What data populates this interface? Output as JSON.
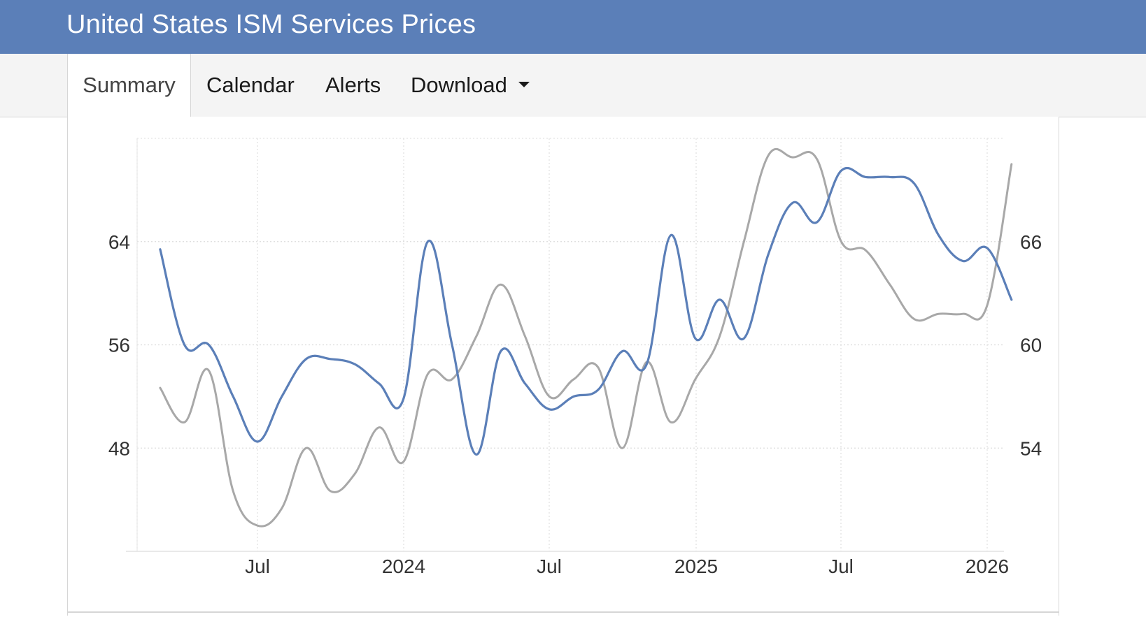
{
  "header": {
    "title": "United States ISM Services Prices"
  },
  "tabs": [
    {
      "label": "Summary",
      "active": true
    },
    {
      "label": "Calendar",
      "active": false
    },
    {
      "label": "Alerts",
      "active": false
    },
    {
      "label": "Download",
      "active": false,
      "dropdown": true
    }
  ],
  "chart_data": {
    "type": "line",
    "title": "",
    "xlabel": "",
    "x_tick_labels": [
      "Jul",
      "2024",
      "Jul",
      "2025",
      "Jul",
      "2026"
    ],
    "x": [
      "2023-03",
      "2023-04",
      "2023-05",
      "2023-06",
      "2023-07",
      "2023-08",
      "2023-09",
      "2023-10",
      "2023-11",
      "2023-12",
      "2024-01",
      "2024-02",
      "2024-03",
      "2024-04",
      "2024-05",
      "2024-06",
      "2024-07",
      "2024-08",
      "2024-09",
      "2024-10",
      "2024-11",
      "2024-12",
      "2025-01",
      "2025-02",
      "2025-03",
      "2025-04",
      "2025-05",
      "2025-06",
      "2025-07",
      "2025-08",
      "2025-09",
      "2025-10",
      "2025-11",
      "2025-12",
      "2026-01",
      "2026-02"
    ],
    "y_left": {
      "ticks": [
        48,
        56,
        64
      ],
      "range": [
        40,
        72
      ]
    },
    "y_right": {
      "ticks": [
        54,
        60,
        66
      ],
      "range": [
        48,
        72
      ]
    },
    "grid": true,
    "legend": "none",
    "series": [
      {
        "axis": "left",
        "color": "#5b7fb8",
        "values": [
          63.4,
          56.0,
          56.0,
          52.0,
          48.5,
          52.0,
          54.9,
          54.9,
          54.5,
          53.0,
          51.8,
          64.0,
          56.0,
          47.5,
          55.5,
          53.0,
          51.0,
          52.0,
          52.5,
          55.5,
          54.5,
          64.5,
          56.5,
          59.5,
          56.5,
          63.0,
          67.0,
          65.5,
          69.5,
          69.0,
          69.0,
          68.5,
          64.5,
          62.5,
          63.5,
          59.5
        ]
      },
      {
        "axis": "right",
        "color": "#a8a8a8",
        "values": [
          57.5,
          55.5,
          58.5,
          51.5,
          49.5,
          50.5,
          54.0,
          51.5,
          52.5,
          55.2,
          53.2,
          58.3,
          58.0,
          60.5,
          63.5,
          60.5,
          57.0,
          58.0,
          58.7,
          54.0,
          59.0,
          55.5,
          58.0,
          60.5,
          66.0,
          71.0,
          70.9,
          70.8,
          66.0,
          65.5,
          63.5,
          61.5,
          61.8,
          61.8,
          62.3,
          70.5
        ]
      }
    ]
  }
}
